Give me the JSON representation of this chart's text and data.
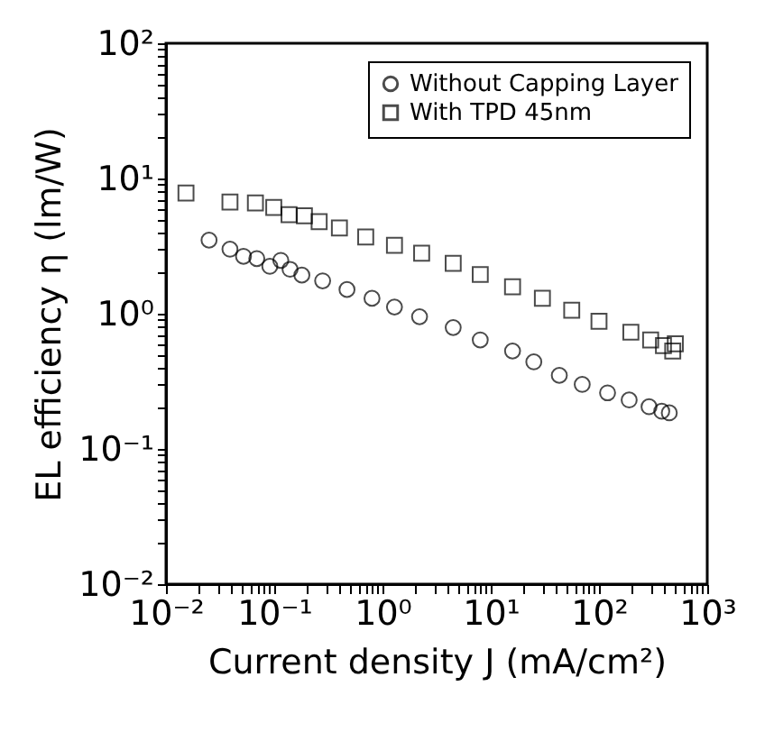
{
  "chart_data": {
    "type": "scatter",
    "xlabel": "Current density J  (mA/cm²)",
    "ylabel": "EL efficiency η (lm/W)",
    "log": "xy",
    "grid": false,
    "legend": "top right",
    "xlim": [
      0.01,
      1000
    ],
    "ylim": [
      0.01,
      100
    ],
    "xticks": [
      {
        "value": 0.01,
        "label": "10⁻²"
      },
      {
        "value": 0.1,
        "label": "10⁻¹"
      },
      {
        "value": 1,
        "label": "10⁰"
      },
      {
        "value": 10,
        "label": "10¹"
      },
      {
        "value": 100,
        "label": "10²"
      },
      {
        "value": 1000,
        "label": "10³"
      },
      {
        "value": 0.02,
        "label": null
      },
      {
        "value": 0.03,
        "label": null
      },
      {
        "value": 0.04,
        "label": null
      },
      {
        "value": 0.05,
        "label": null
      },
      {
        "value": 0.06,
        "label": null
      },
      {
        "value": 0.07,
        "label": null
      },
      {
        "value": 0.08,
        "label": null
      },
      {
        "value": 0.09,
        "label": null
      },
      {
        "value": 0.2,
        "label": null
      },
      {
        "value": 0.3,
        "label": null
      },
      {
        "value": 0.4,
        "label": null
      },
      {
        "value": 0.5,
        "label": null
      },
      {
        "value": 0.6,
        "label": null
      },
      {
        "value": 0.7,
        "label": null
      },
      {
        "value": 0.8,
        "label": null
      },
      {
        "value": 0.9,
        "label": null
      },
      {
        "value": 2,
        "label": null
      },
      {
        "value": 3,
        "label": null
      },
      {
        "value": 4,
        "label": null
      },
      {
        "value": 5,
        "label": null
      },
      {
        "value": 6,
        "label": null
      },
      {
        "value": 7,
        "label": null
      },
      {
        "value": 8,
        "label": null
      },
      {
        "value": 9,
        "label": null
      },
      {
        "value": 20,
        "label": null
      },
      {
        "value": 30,
        "label": null
      },
      {
        "value": 40,
        "label": null
      },
      {
        "value": 50,
        "label": null
      },
      {
        "value": 60,
        "label": null
      },
      {
        "value": 70,
        "label": null
      },
      {
        "value": 80,
        "label": null
      },
      {
        "value": 90,
        "label": null
      },
      {
        "value": 200,
        "label": null
      },
      {
        "value": 300,
        "label": null
      },
      {
        "value": 400,
        "label": null
      },
      {
        "value": 500,
        "label": null
      },
      {
        "value": 600,
        "label": null
      },
      {
        "value": 700,
        "label": null
      },
      {
        "value": 800,
        "label": null
      },
      {
        "value": 900,
        "label": null
      }
    ],
    "yticks": [
      {
        "value": 0.01,
        "label": "10⁻²"
      },
      {
        "value": 0.1,
        "label": "10⁻¹"
      },
      {
        "value": 1,
        "label": "10⁰"
      },
      {
        "value": 10,
        "label": "10¹"
      },
      {
        "value": 100,
        "label": "10²"
      },
      {
        "value": 0.02,
        "label": null
      },
      {
        "value": 0.03,
        "label": null
      },
      {
        "value": 0.04,
        "label": null
      },
      {
        "value": 0.05,
        "label": null
      },
      {
        "value": 0.06,
        "label": null
      },
      {
        "value": 0.07,
        "label": null
      },
      {
        "value": 0.08,
        "label": null
      },
      {
        "value": 0.09,
        "label": null
      },
      {
        "value": 0.2,
        "label": null
      },
      {
        "value": 0.3,
        "label": null
      },
      {
        "value": 0.4,
        "label": null
      },
      {
        "value": 0.5,
        "label": null
      },
      {
        "value": 0.6,
        "label": null
      },
      {
        "value": 0.7,
        "label": null
      },
      {
        "value": 0.8,
        "label": null
      },
      {
        "value": 0.9,
        "label": null
      },
      {
        "value": 2,
        "label": null
      },
      {
        "value": 3,
        "label": null
      },
      {
        "value": 4,
        "label": null
      },
      {
        "value": 5,
        "label": null
      },
      {
        "value": 6,
        "label": null
      },
      {
        "value": 7,
        "label": null
      },
      {
        "value": 8,
        "label": null
      },
      {
        "value": 9,
        "label": null
      },
      {
        "value": 20,
        "label": null
      },
      {
        "value": 30,
        "label": null
      },
      {
        "value": 40,
        "label": null
      },
      {
        "value": 50,
        "label": null
      },
      {
        "value": 60,
        "label": null
      },
      {
        "value": 70,
        "label": null
      },
      {
        "value": 80,
        "label": null
      },
      {
        "value": 90,
        "label": null
      }
    ],
    "series": [
      {
        "name": "Without Capping Layer",
        "color": "#000000",
        "marker": "circle",
        "x": [
          0.025,
          0.039,
          0.052,
          0.069,
          0.091,
          0.115,
          0.14,
          0.18,
          0.28,
          0.47,
          0.8,
          1.29,
          2.2,
          4.5,
          8,
          15.9,
          25,
          43,
          70,
          120,
          190,
          290,
          380,
          446
        ],
        "values": [
          3.5,
          3.0,
          2.66,
          2.56,
          2.24,
          2.48,
          2.13,
          1.93,
          1.75,
          1.51,
          1.3,
          1.12,
          0.95,
          0.79,
          0.64,
          0.53,
          0.44,
          0.35,
          0.3,
          0.26,
          0.23,
          0.205,
          0.19,
          0.185
        ]
      },
      {
        "name": "With TPD 45nm",
        "color": "#000000",
        "marker": "square",
        "x": [
          0.0153,
          0.039,
          0.067,
          0.099,
          0.137,
          0.19,
          0.26,
          0.4,
          0.7,
          1.29,
          2.3,
          4.5,
          8,
          15.9,
          30,
          56,
          100,
          197,
          300,
          394,
          480,
          507
        ],
        "values": [
          7.8,
          6.7,
          6.6,
          6.1,
          5.4,
          5.3,
          4.8,
          4.3,
          3.7,
          3.2,
          2.8,
          2.36,
          1.95,
          1.58,
          1.3,
          1.06,
          0.88,
          0.73,
          0.64,
          0.58,
          0.53,
          0.6
        ]
      }
    ]
  }
}
